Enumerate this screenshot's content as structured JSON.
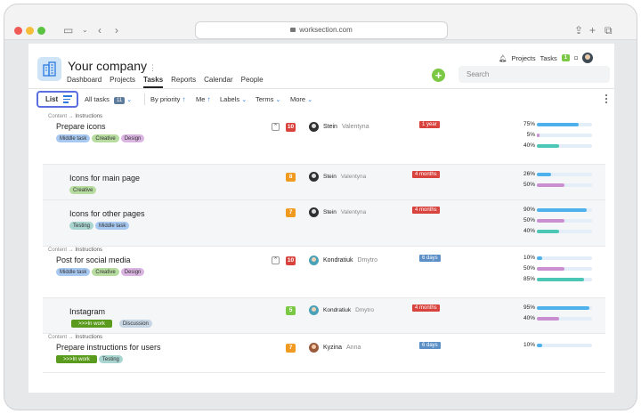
{
  "browser": {
    "url": "worksection.com"
  },
  "header": {
    "company": "Your company",
    "more": "⋮",
    "nav": [
      "Dashboard",
      "Projects",
      "Tasks",
      "Reports",
      "Calendar",
      "People"
    ],
    "active_nav": "Tasks",
    "projects": "Projects",
    "tasks": "Tasks",
    "tasks_count": "1",
    "search_placeholder": "Search"
  },
  "toolbar": {
    "list": "List",
    "all_tasks": "All tasks",
    "all_tasks_count": "11",
    "by_priority": "By priority",
    "me": "Me",
    "labels": "Labels",
    "terms": "Terms",
    "more": "More"
  },
  "tasks": [
    {
      "crumb_a": "Content",
      "crumb_b": "Instructions",
      "title": "Prepare icons",
      "tags": [
        "Middle task",
        "Creative",
        "Design"
      ],
      "priority": "10",
      "person_first": "Stein",
      "person_last": "Valentyna",
      "due": "1 year",
      "progress": [
        75,
        5,
        40
      ]
    },
    {
      "title": "Icons for main page",
      "tags": [
        "Creative"
      ],
      "priority": "8",
      "person_first": "Stein",
      "person_last": "Valentyna",
      "due": "4 months",
      "progress": [
        26,
        50
      ]
    },
    {
      "title": "Icons for other pages",
      "tags": [
        "Testing",
        "Middle task"
      ],
      "priority": "7",
      "person_first": "Stein",
      "person_last": "Valentyna",
      "due": "4 months",
      "progress": [
        90,
        50,
        40
      ]
    },
    {
      "crumb_a": "Content",
      "crumb_b": "Instructions",
      "title": "Post for social media",
      "tags": [
        "Middle task",
        "Creative",
        "Design"
      ],
      "priority": "10",
      "person_first": "Kondratiuk",
      "person_last": "Dmytro",
      "due": "6 days",
      "progress": [
        10,
        50,
        85
      ]
    },
    {
      "title": "Instagram",
      "tags": [
        ">>>In work",
        "Discussion"
      ],
      "priority": "5",
      "person_first": "Kondratiuk",
      "person_last": "Dmytro",
      "due": "4 months",
      "progress": [
        95,
        40
      ]
    },
    {
      "crumb_a": "Content",
      "crumb_b": "Instructions",
      "title": "Prepare instructions for users",
      "tags": [
        ">>>In work",
        "Testing"
      ],
      "priority": "7",
      "person_first": "Kyzina",
      "person_last": "Anna",
      "due": "6 days",
      "progress": [
        10
      ]
    }
  ],
  "colors": {
    "accent": "#2a7ae2",
    "danger": "#d9433d",
    "success": "#7bc845"
  }
}
